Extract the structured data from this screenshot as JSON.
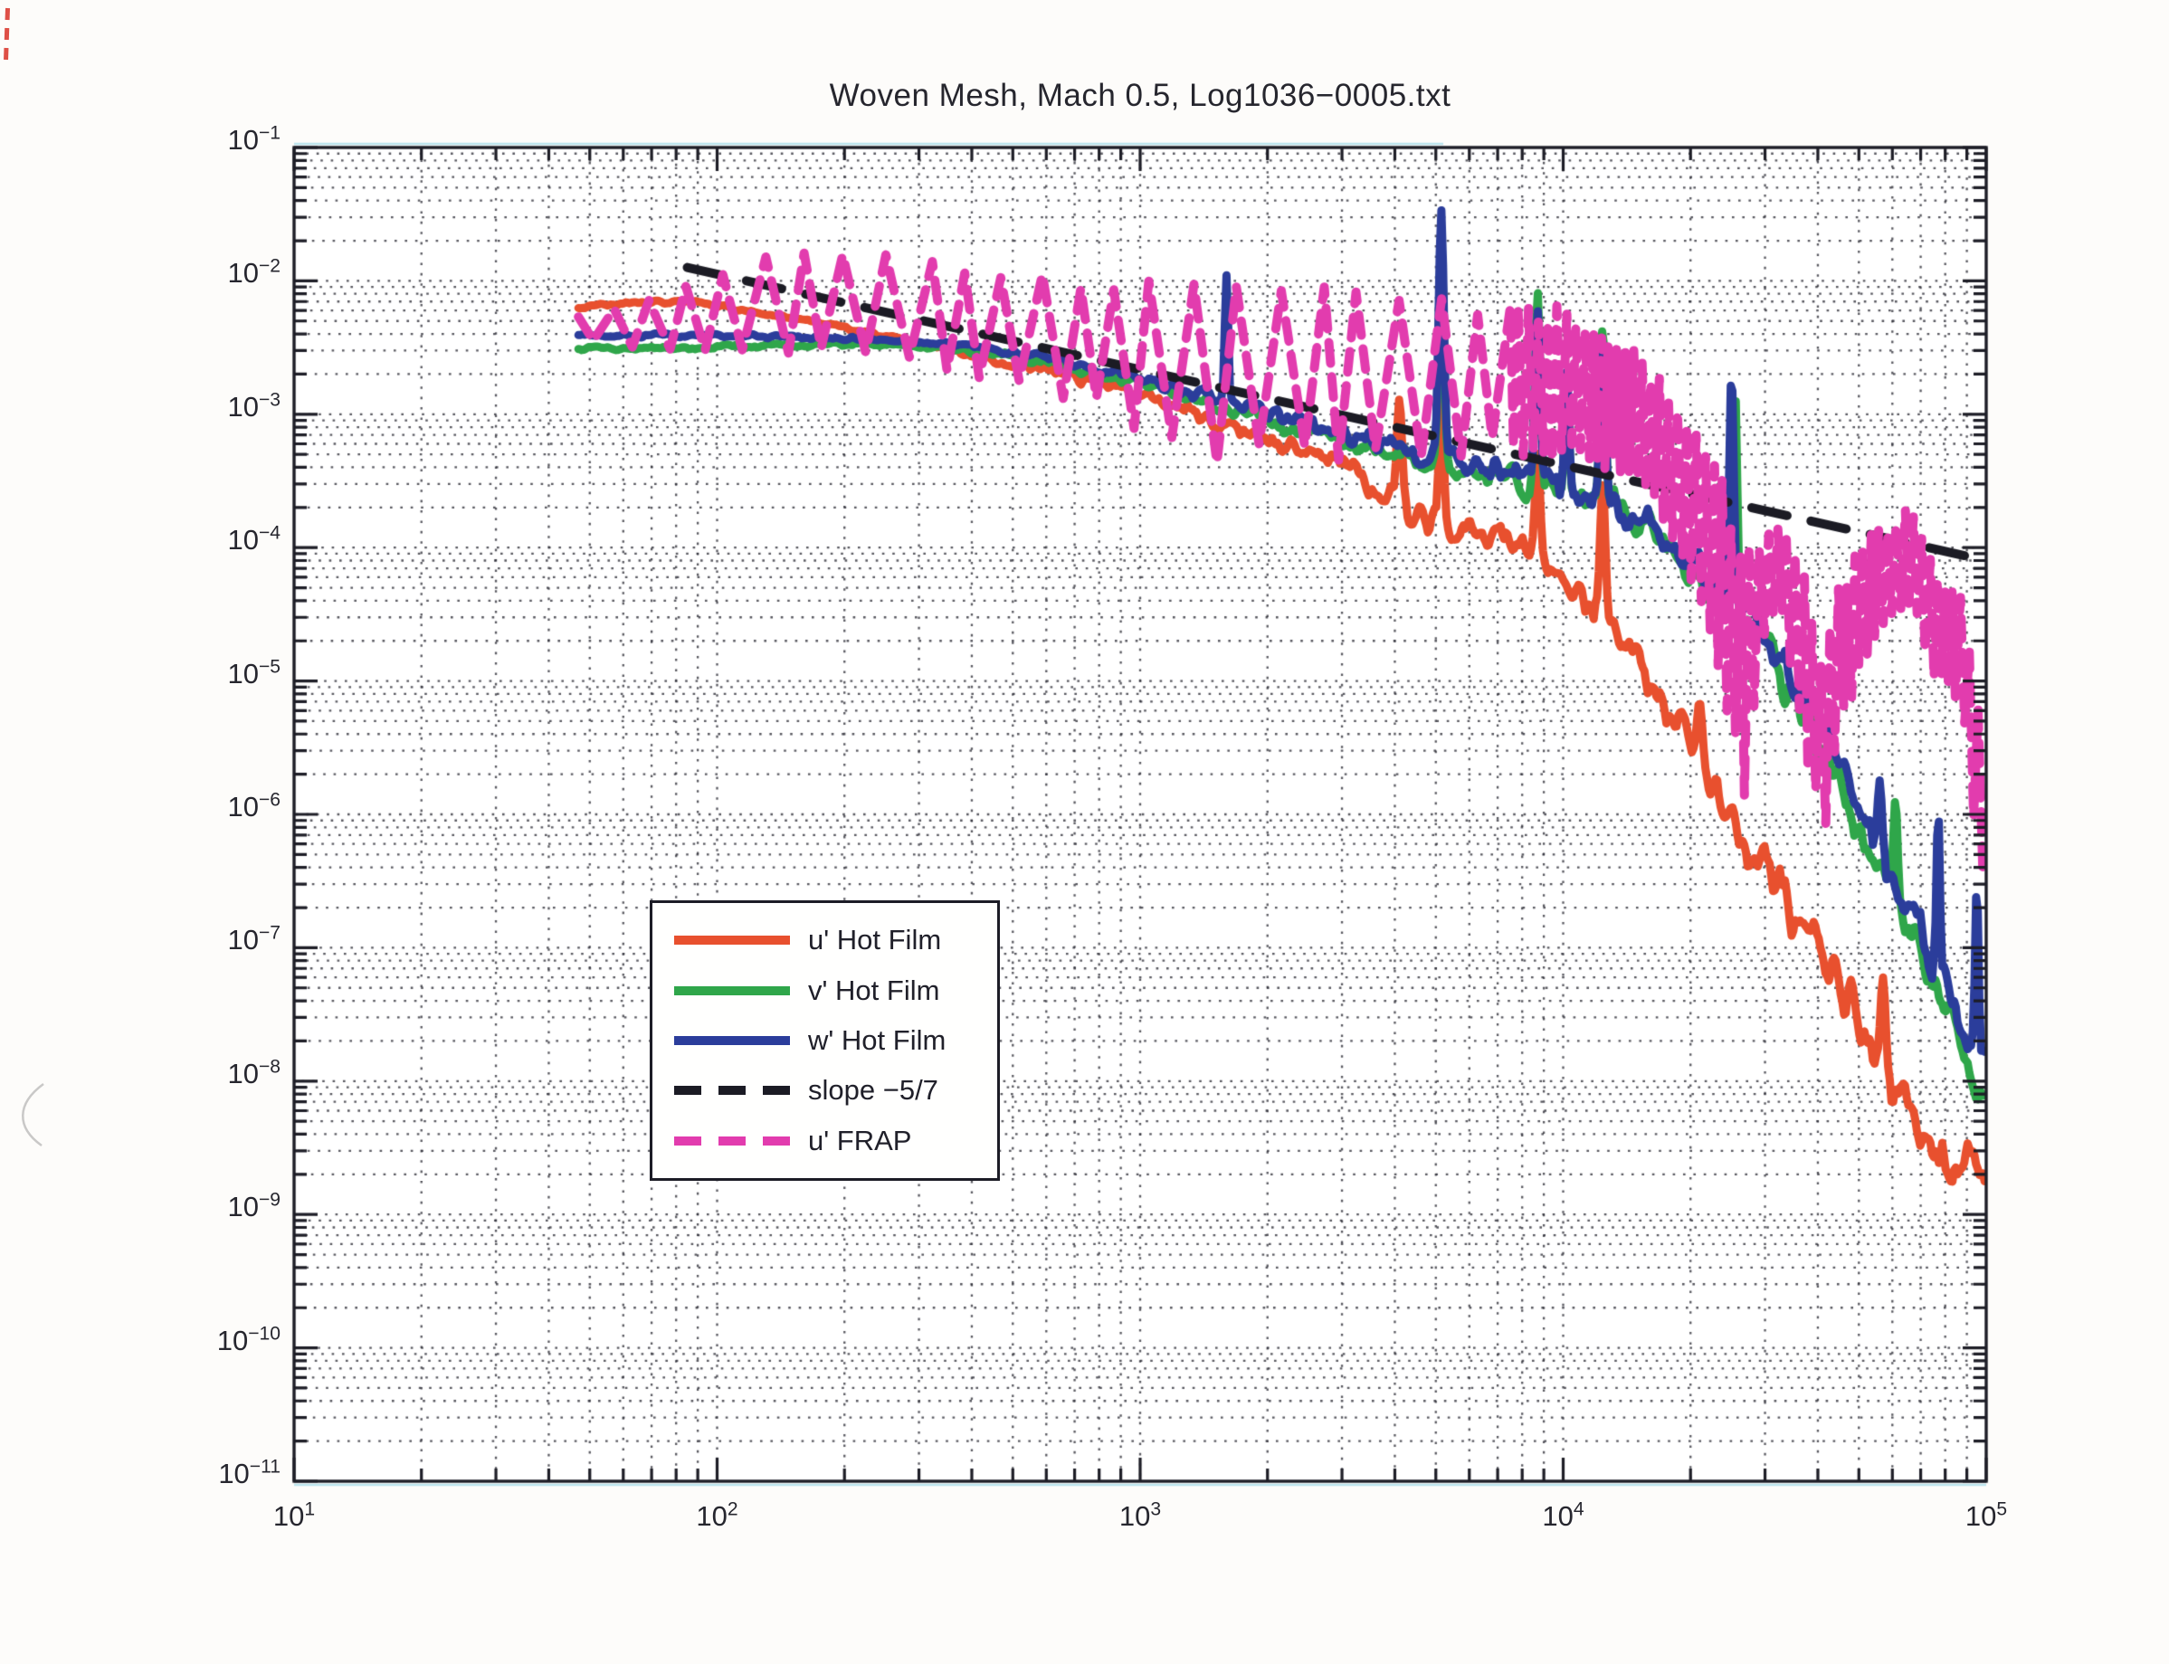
{
  "figure": {
    "paper_color": "#fdfcfa",
    "plot_background": "#ffffff",
    "axis_color": "#1d1d26",
    "grid_dot_color": "#2a2a33",
    "scan_artifact_cyan": "#a8dcea"
  },
  "chart_data": {
    "type": "line",
    "title": "Woven Mesh, Mach 0.5, Log1036−0005.txt",
    "xlabel": "",
    "ylabel": "",
    "x_axis": {
      "scale": "log",
      "min": 10,
      "max": 100000,
      "tick_exponents": [
        1,
        2,
        3,
        4,
        5
      ],
      "tick_exp_labels": [
        "1",
        "2",
        "3",
        "4",
        "5"
      ],
      "minor_grid": true
    },
    "y_axis": {
      "scale": "log",
      "min": 1e-11,
      "max": 0.1,
      "tick_exponents": [
        -1,
        -2,
        -3,
        -4,
        -5,
        -6,
        -7,
        -8,
        -9,
        -10,
        -11
      ],
      "tick_exp_labels": [
        "−1",
        "−2",
        "−3",
        "−4",
        "−5",
        "−6",
        "−7",
        "−8",
        "−9",
        "−10",
        "−11"
      ],
      "minor_grid": true
    },
    "grid": {
      "style": "dotted",
      "on": true
    },
    "legend": {
      "position": "lower-left-inside"
    },
    "series": [
      {
        "name": "u' Hot Film",
        "color": "#e8502e",
        "style": "solid",
        "seed": 42,
        "noise_dec": [
          0.02,
          0.27
        ],
        "points": [
          [
            47,
            0.0063
          ],
          [
            60,
            0.0068
          ],
          [
            80,
            0.007
          ],
          [
            100,
            0.0066
          ],
          [
            130,
            0.0056
          ],
          [
            170,
            0.0048
          ],
          [
            220,
            0.0042
          ],
          [
            300,
            0.0034
          ],
          [
            400,
            0.0028
          ],
          [
            500,
            0.0024
          ],
          [
            630,
            0.00205
          ],
          [
            800,
            0.00175
          ],
          [
            1000,
            0.0014
          ],
          [
            1300,
            0.00105
          ],
          [
            1600,
            0.00082
          ],
          [
            2000,
            0.00064
          ],
          [
            2500,
            0.00052
          ],
          [
            3000,
            0.00042
          ],
          [
            3600,
            0.00029
          ],
          [
            4500,
            0.00019
          ],
          [
            5500,
            0.00014
          ],
          [
            7000,
            0.000125
          ],
          [
            8500,
            9e-05
          ],
          [
            10000,
            5.5e-05
          ],
          [
            12000,
            3.6e-05
          ],
          [
            14000,
            1.8e-05
          ],
          [
            17000,
            7e-06
          ],
          [
            20000,
            2.8e-06
          ],
          [
            24000,
            1.1e-06
          ],
          [
            28000,
            5e-07
          ],
          [
            33000,
            2.4e-07
          ],
          [
            40000,
            9e-08
          ],
          [
            50000,
            2.6e-08
          ],
          [
            60000,
            9e-09
          ],
          [
            70000,
            4.5e-09
          ],
          [
            80000,
            2.8e-09
          ],
          [
            90000,
            2.2e-09
          ],
          [
            100000,
            1.8e-09
          ]
        ],
        "spikes": [
          [
            4100,
            0.0013,
            0.006
          ],
          [
            5150,
            0.0023,
            0.005
          ],
          [
            8700,
            0.00051,
            0.006
          ],
          [
            12400,
            0.00031,
            0.006
          ],
          [
            21000,
            7e-06,
            0.007
          ],
          [
            57000,
            6e-08,
            0.006
          ]
        ]
      },
      {
        "name": "v' Hot Film",
        "color": "#2fa64a",
        "style": "solid",
        "seed": 77,
        "noise_dec": [
          0.02,
          0.22
        ],
        "points": [
          [
            47,
            0.0031
          ],
          [
            70,
            0.0031
          ],
          [
            100,
            0.0032
          ],
          [
            150,
            0.0033
          ],
          [
            220,
            0.0034
          ],
          [
            300,
            0.0033
          ],
          [
            400,
            0.003
          ],
          [
            500,
            0.0027
          ],
          [
            630,
            0.0024
          ],
          [
            800,
            0.002
          ],
          [
            1000,
            0.0017
          ],
          [
            1300,
            0.00135
          ],
          [
            1600,
            0.0011
          ],
          [
            2000,
            0.00088
          ],
          [
            2500,
            0.00072
          ],
          [
            3000,
            0.0006
          ],
          [
            4000,
            0.00048
          ],
          [
            5000,
            0.00044
          ],
          [
            6300,
            0.00036
          ],
          [
            8000,
            0.0003
          ],
          [
            10000,
            0.00025
          ],
          [
            12500,
            0.00022
          ],
          [
            15000,
            0.00015
          ],
          [
            18000,
            9e-05
          ],
          [
            22000,
            5e-05
          ],
          [
            26000,
            3e-05
          ],
          [
            30000,
            1.7e-05
          ],
          [
            35000,
            7e-06
          ],
          [
            40000,
            3.2e-06
          ],
          [
            45000,
            1.6e-06
          ],
          [
            50000,
            8e-07
          ],
          [
            60000,
            2.6e-07
          ],
          [
            70000,
            9e-08
          ],
          [
            80000,
            3.5e-08
          ],
          [
            90000,
            1.6e-08
          ],
          [
            100000,
            8e-09
          ]
        ],
        "spikes": [
          [
            5150,
            0.02,
            0.006
          ],
          [
            8700,
            0.0082,
            0.006
          ],
          [
            10200,
            0.0019,
            0.005
          ],
          [
            12400,
            0.0045,
            0.006
          ],
          [
            25500,
            0.0015,
            0.005
          ],
          [
            61000,
            1.3e-06,
            0.005
          ]
        ]
      },
      {
        "name": "w' Hot Film",
        "color": "#2b3d9b",
        "style": "solid",
        "seed": 123,
        "noise_dec": [
          0.02,
          0.24
        ],
        "points": [
          [
            47,
            0.0039
          ],
          [
            70,
            0.0039
          ],
          [
            100,
            0.0039
          ],
          [
            150,
            0.0038
          ],
          [
            220,
            0.0037
          ],
          [
            300,
            0.0035
          ],
          [
            400,
            0.0032
          ],
          [
            500,
            0.0029
          ],
          [
            630,
            0.0026
          ],
          [
            800,
            0.0022
          ],
          [
            1000,
            0.00185
          ],
          [
            1300,
            0.0015
          ],
          [
            1600,
            0.00125
          ],
          [
            2000,
            0.001
          ],
          [
            2500,
            0.00082
          ],
          [
            3000,
            0.00068
          ],
          [
            4000,
            0.00055
          ],
          [
            5000,
            0.0005
          ],
          [
            6300,
            0.00042
          ],
          [
            8000,
            0.00034
          ],
          [
            10000,
            0.00027
          ],
          [
            12500,
            0.00023
          ],
          [
            15000,
            0.00016
          ],
          [
            18000,
            0.000105
          ],
          [
            22000,
            6e-05
          ],
          [
            26000,
            4.5e-05
          ],
          [
            30000,
            2.6e-05
          ],
          [
            35000,
            9e-06
          ],
          [
            40000,
            4.5e-06
          ],
          [
            45000,
            2.2e-06
          ],
          [
            50000,
            1.1e-06
          ],
          [
            60000,
            3.6e-07
          ],
          [
            70000,
            1.3e-07
          ],
          [
            80000,
            5e-08
          ],
          [
            90000,
            2.4e-08
          ],
          [
            100000,
            1.3e-08
          ]
        ],
        "spikes": [
          [
            1600,
            0.011,
            0.004
          ],
          [
            5150,
            0.034,
            0.006
          ],
          [
            8700,
            0.006,
            0.006
          ],
          [
            10200,
            0.0021,
            0.005
          ],
          [
            12400,
            0.0038,
            0.006
          ],
          [
            25000,
            0.0021,
            0.005
          ],
          [
            56000,
            1.8e-06,
            0.005
          ],
          [
            77000,
            1.1e-06,
            0.004
          ],
          [
            95000,
            3e-07,
            0.004
          ]
        ]
      },
      {
        "name": "slope −5/7",
        "color": "#1b1b24",
        "style": "dashed",
        "slope": "-5/7",
        "points": [
          [
            85,
            0.0126
          ],
          [
            100000,
            8e-05
          ]
        ]
      },
      {
        "name": "u' FRAP",
        "color": "#e23cae",
        "style": "dashed-oscillating",
        "seed": 7,
        "osc_halfperiod_dec": 0.045,
        "band_halfperiod_dec": 0.01,
        "envelope": [
          [
            47,
            0.0056,
            0.0035
          ],
          [
            60,
            0.0063,
            0.0032
          ],
          [
            80,
            0.008,
            0.0032
          ],
          [
            100,
            0.0112,
            0.0032
          ],
          [
            140,
            0.018,
            0.0032
          ],
          [
            200,
            0.018,
            0.003
          ],
          [
            280,
            0.0135,
            0.0026
          ],
          [
            400,
            0.0115,
            0.0022
          ],
          [
            560,
            0.0105,
            0.0017
          ],
          [
            800,
            0.01,
            0.0011
          ],
          [
            1100,
            0.009,
            0.0007
          ],
          [
            1600,
            0.0085,
            0.0005
          ],
          [
            2200,
            0.008,
            0.00045
          ],
          [
            3000,
            0.0075,
            0.00045
          ],
          [
            4000,
            0.007,
            0.0005
          ],
          [
            5000,
            0.0065,
            0.0005
          ],
          [
            6300,
            0.007,
            0.00055
          ],
          [
            7500,
            0.006,
            0.00055
          ]
        ],
        "band": [
          [
            7500,
            0.006,
            0.00055
          ],
          [
            10000,
            0.0055,
            0.0005
          ],
          [
            12500,
            0.0042,
            0.00045
          ],
          [
            16000,
            0.0021,
            0.00026
          ],
          [
            20000,
            0.0008,
            6.5e-05
          ],
          [
            24000,
            0.00028,
            8e-06
          ],
          [
            27000,
            7e-05,
            1.7e-06
          ],
          [
            30000,
            0.00013,
            2.6e-05
          ],
          [
            33000,
            0.00013,
            3.3e-05
          ],
          [
            36000,
            8e-05,
            6.5e-06
          ],
          [
            41000,
            1.1e-05,
            6.5e-07
          ],
          [
            45000,
            4.5e-05,
            4.5e-06
          ],
          [
            50000,
            8.5e-05,
            1.3e-05
          ],
          [
            55000,
            0.00012,
            2.6e-05
          ],
          [
            60000,
            0.000155,
            3.3e-05
          ],
          [
            65000,
            0.000175,
            4e-05
          ],
          [
            70000,
            0.00013,
            2.6e-05
          ],
          [
            75000,
            6.5e-05,
            1.05e-05
          ],
          [
            80000,
            4.5e-05,
            1.05e-05
          ],
          [
            85000,
            4e-05,
            8.5e-06
          ],
          [
            88000,
            3.6e-05,
            6.5e-06
          ],
          [
            92000,
            1.6e-05,
            1.7e-06
          ],
          [
            96000,
            5e-06,
            5.2e-07
          ],
          [
            100000,
            1.6e-06,
            3.3e-07
          ]
        ]
      }
    ]
  }
}
